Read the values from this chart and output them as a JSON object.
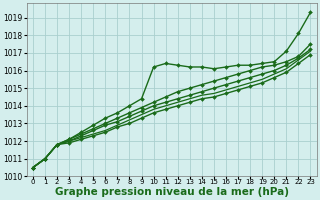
{
  "background_color": "#d4eeed",
  "grid_color": "#aacfcf",
  "line_color": "#1a6b1a",
  "xlabel": "Graphe pression niveau de la mer (hPa)",
  "xlabel_fontsize": 7.5,
  "xlim": [
    -0.5,
    23.5
  ],
  "ylim": [
    1010.0,
    1019.8
  ],
  "yticks": [
    1010,
    1011,
    1012,
    1013,
    1014,
    1015,
    1016,
    1017,
    1018,
    1019
  ],
  "xticks": [
    0,
    1,
    2,
    3,
    4,
    5,
    6,
    7,
    8,
    9,
    10,
    11,
    12,
    13,
    14,
    15,
    16,
    17,
    18,
    19,
    20,
    21,
    22,
    23
  ],
  "series": [
    {
      "x": [
        0,
        1,
        2,
        3,
        4,
        5,
        6,
        7,
        8,
        9,
        10,
        11,
        12,
        13,
        14,
        15,
        16,
        17,
        18,
        19,
        20,
        21,
        22,
        23
      ],
      "y": [
        1010.5,
        1011.0,
        1011.8,
        1012.1,
        1012.5,
        1012.9,
        1013.3,
        1013.6,
        1014.0,
        1014.4,
        1016.2,
        1016.4,
        1016.3,
        1016.2,
        1016.2,
        1016.1,
        1016.2,
        1016.3,
        1016.3,
        1016.4,
        1016.5,
        1017.1,
        1018.1,
        1019.3
      ],
      "marker": "D",
      "markersize": 2.0,
      "linewidth": 1.0
    },
    {
      "x": [
        0,
        1,
        2,
        3,
        4,
        5,
        6,
        7,
        8,
        9,
        10,
        11,
        12,
        13,
        14,
        15,
        16,
        17,
        18,
        19,
        20,
        21,
        22,
        23
      ],
      "y": [
        1010.5,
        1011.0,
        1011.8,
        1012.1,
        1012.4,
        1012.7,
        1013.0,
        1013.3,
        1013.6,
        1013.9,
        1014.2,
        1014.5,
        1014.8,
        1015.0,
        1015.2,
        1015.4,
        1015.6,
        1015.8,
        1016.0,
        1016.2,
        1016.3,
        1016.5,
        1016.8,
        1017.5
      ],
      "marker": "D",
      "markersize": 2.0,
      "linewidth": 1.0
    },
    {
      "x": [
        0,
        1,
        2,
        3,
        4,
        5,
        6,
        7,
        8,
        9,
        10,
        11,
        12,
        13,
        14,
        15,
        16,
        17,
        18,
        19,
        20,
        21,
        22,
        23
      ],
      "y": [
        1010.5,
        1011.0,
        1011.8,
        1012.0,
        1012.3,
        1012.6,
        1012.9,
        1013.1,
        1013.4,
        1013.7,
        1014.0,
        1014.2,
        1014.4,
        1014.6,
        1014.8,
        1015.0,
        1015.2,
        1015.4,
        1015.6,
        1015.8,
        1016.0,
        1016.3,
        1016.7,
        1017.2
      ],
      "marker": "D",
      "markersize": 2.0,
      "linewidth": 1.0
    },
    {
      "x": [
        0,
        1,
        2,
        3,
        4,
        5,
        6,
        7,
        8,
        9,
        10,
        11,
        12,
        13,
        14,
        15,
        16,
        17,
        18,
        19,
        20,
        21,
        22,
        23
      ],
      "y": [
        1010.5,
        1011.0,
        1011.8,
        1012.0,
        1012.2,
        1012.4,
        1012.6,
        1012.9,
        1013.2,
        1013.5,
        1013.8,
        1014.0,
        1014.2,
        1014.4,
        1014.6,
        1014.7,
        1014.9,
        1015.1,
        1015.3,
        1015.5,
        1015.8,
        1016.1,
        1016.6,
        1017.1
      ],
      "marker": null,
      "markersize": 0,
      "linewidth": 0.9
    },
    {
      "x": [
        0,
        1,
        2,
        3,
        4,
        5,
        6,
        7,
        8,
        9,
        10,
        11,
        12,
        13,
        14,
        15,
        16,
        17,
        18,
        19,
        20,
        21,
        22,
        23
      ],
      "y": [
        1010.5,
        1011.0,
        1011.8,
        1011.9,
        1012.1,
        1012.3,
        1012.5,
        1012.8,
        1013.0,
        1013.3,
        1013.6,
        1013.8,
        1014.0,
        1014.2,
        1014.4,
        1014.5,
        1014.7,
        1014.9,
        1015.1,
        1015.3,
        1015.6,
        1015.9,
        1016.4,
        1016.9
      ],
      "marker": "D",
      "markersize": 2.0,
      "linewidth": 1.0
    }
  ]
}
